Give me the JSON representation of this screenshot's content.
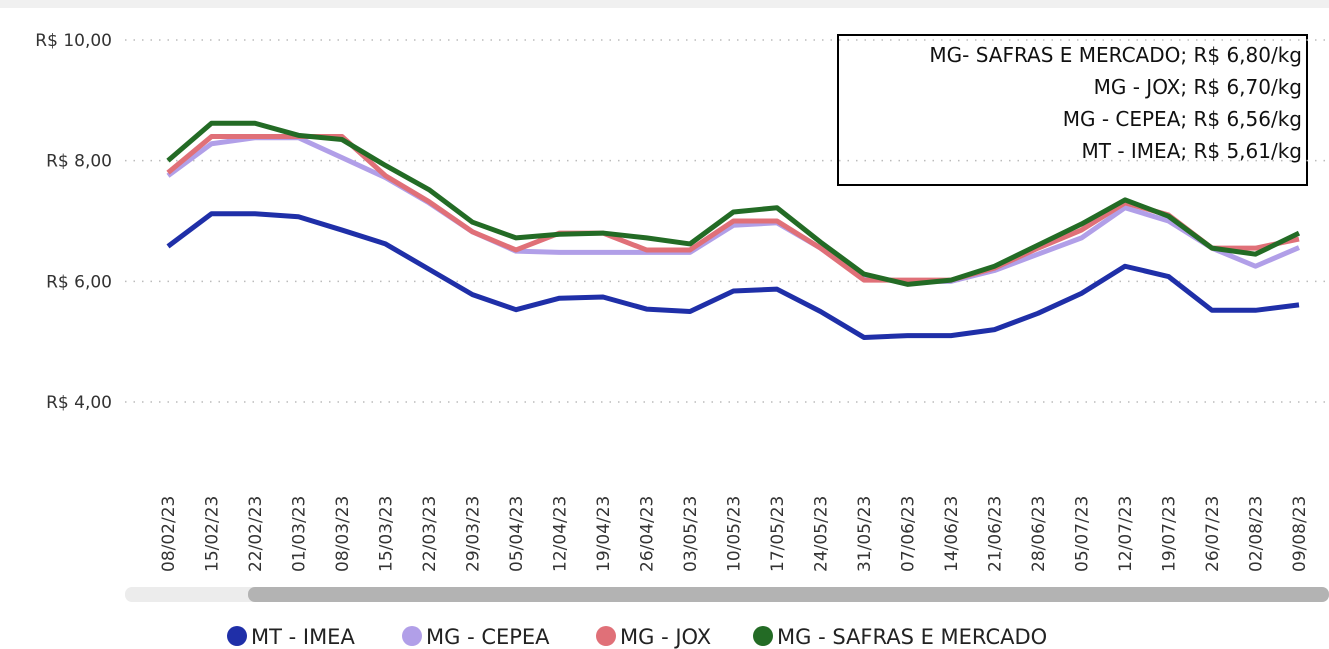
{
  "chart_data": {
    "type": "line",
    "categories": [
      "08/02/23",
      "15/02/23",
      "22/02/23",
      "01/03/23",
      "08/03/23",
      "15/03/23",
      "22/03/23",
      "29/03/23",
      "05/04/23",
      "12/04/23",
      "19/04/23",
      "26/04/23",
      "03/05/23",
      "10/05/23",
      "17/05/23",
      "24/05/23",
      "31/05/23",
      "07/06/23",
      "14/06/23",
      "21/06/23",
      "28/06/23",
      "05/07/23",
      "12/07/23",
      "19/07/23",
      "26/07/23",
      "02/08/23",
      "09/08/23"
    ],
    "series": [
      {
        "name": "MT - IMEA",
        "color": "#1f2fa8",
        "values": [
          6.58,
          7.12,
          7.12,
          7.07,
          6.85,
          6.62,
          6.2,
          5.78,
          5.53,
          5.72,
          5.74,
          5.54,
          5.5,
          5.84,
          5.87,
          5.5,
          5.07,
          5.1,
          5.1,
          5.2,
          5.47,
          5.8,
          6.25,
          6.08,
          5.52,
          5.52,
          5.61
        ]
      },
      {
        "name": "MG - CEPEA",
        "color": "#b19fe8",
        "values": [
          7.75,
          8.28,
          8.38,
          8.38,
          8.05,
          7.72,
          7.3,
          6.82,
          6.5,
          6.48,
          6.48,
          6.48,
          6.48,
          6.93,
          6.97,
          6.55,
          6.05,
          6.0,
          6.0,
          6.18,
          6.45,
          6.72,
          7.22,
          7.0,
          6.55,
          6.25,
          6.56
        ]
      },
      {
        "name": "MG - JOX",
        "color": "#e07078",
        "values": [
          7.8,
          8.4,
          8.4,
          8.4,
          8.4,
          7.75,
          7.32,
          6.82,
          6.52,
          6.8,
          6.8,
          6.52,
          6.52,
          7.0,
          7.0,
          6.55,
          6.02,
          6.02,
          6.02,
          6.22,
          6.55,
          6.85,
          7.3,
          7.1,
          6.55,
          6.55,
          6.7
        ]
      },
      {
        "name": "MG - SAFRAS E MERCADO",
        "color": "#236b25",
        "values": [
          8.0,
          8.62,
          8.62,
          8.42,
          8.35,
          7.92,
          7.52,
          6.98,
          6.72,
          6.78,
          6.8,
          6.72,
          6.62,
          7.15,
          7.22,
          6.65,
          6.12,
          5.95,
          6.02,
          6.25,
          6.6,
          6.95,
          7.35,
          7.08,
          6.55,
          6.45,
          6.8
        ]
      }
    ],
    "ylim": [
      4,
      10
    ],
    "yticks": [
      {
        "value": 4,
        "label": "R$ 4,00"
      },
      {
        "value": 6,
        "label": "R$ 6,00"
      },
      {
        "value": 8,
        "label": "R$ 8,00"
      },
      {
        "value": 10,
        "label": "R$ 10,00"
      }
    ],
    "grid": true,
    "annotations": [
      "MG- SAFRAS E MERCADO; R$ 6,80/kg",
      "MG - JOX; R$ 6,70/kg",
      "MG - CEPEA; R$ 6,56/kg",
      "MT - IMEA; R$ 5,61/kg"
    ]
  }
}
